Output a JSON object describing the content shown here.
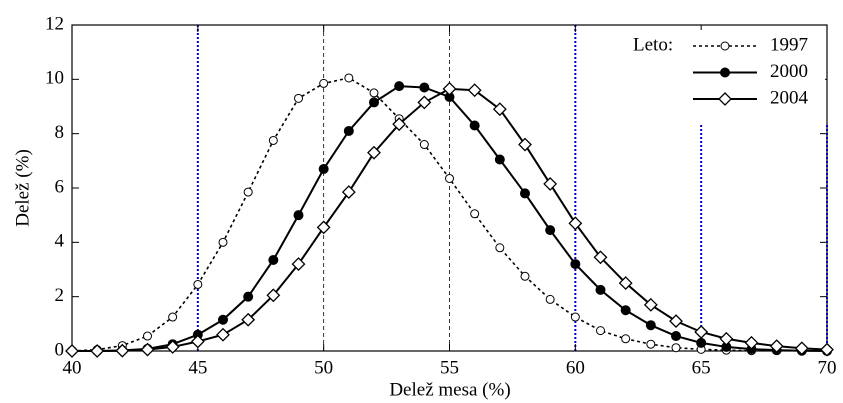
{
  "chart_data": {
    "type": "line",
    "xlabel": "Delež mesa (%)",
    "ylabel": "Delež (%)",
    "legend_title": "Leto:",
    "legend": "upper right",
    "x": [
      40,
      41,
      42,
      43,
      44,
      45,
      46,
      47,
      48,
      49,
      50,
      51,
      52,
      53,
      54,
      55,
      56,
      57,
      58,
      59,
      60,
      61,
      62,
      63,
      64,
      65,
      66,
      67,
      68,
      69,
      70
    ],
    "series": [
      {
        "name": "1997",
        "color": "#000000",
        "line": "dotted",
        "marker": "open-circle",
        "values": [
          0,
          0.05,
          0.2,
          0.55,
          1.25,
          2.45,
          4.0,
          5.85,
          7.75,
          9.3,
          9.85,
          10.05,
          9.5,
          8.55,
          7.6,
          6.35,
          5.05,
          3.8,
          2.75,
          1.9,
          1.25,
          0.75,
          0.45,
          0.25,
          0.12,
          0.06,
          0.03,
          0.01,
          null,
          null,
          null
        ]
      },
      {
        "name": "2000",
        "color": "#000000",
        "line": "solid",
        "marker": "filled-circle",
        "values": [
          0,
          0,
          0.02,
          0.08,
          0.25,
          0.6,
          1.15,
          2.0,
          3.35,
          5.0,
          6.7,
          8.1,
          9.15,
          9.75,
          9.7,
          9.35,
          8.3,
          7.05,
          5.8,
          4.45,
          3.2,
          2.25,
          1.5,
          0.95,
          0.55,
          0.3,
          0.15,
          0.07,
          0.03,
          0.01,
          0
        ]
      },
      {
        "name": "2004",
        "color": "#000000",
        "line": "solid",
        "marker": "open-diamond",
        "values": [
          0,
          0,
          0.01,
          0.05,
          0.15,
          0.35,
          0.6,
          1.15,
          2.05,
          3.2,
          4.55,
          5.85,
          7.3,
          8.35,
          9.15,
          9.65,
          9.6,
          8.9,
          7.6,
          6.15,
          4.7,
          3.45,
          2.5,
          1.7,
          1.1,
          0.7,
          0.45,
          0.3,
          0.18,
          0.1,
          0.05
        ]
      }
    ],
    "vlines": [
      {
        "x": 45,
        "color": "#0000cc"
      },
      {
        "x": 50,
        "color": "#000000"
      },
      {
        "x": 55,
        "color": "#000000"
      },
      {
        "x": 60,
        "color": "#0000cc"
      },
      {
        "x": 65,
        "color": "#0000cc"
      },
      {
        "x": 70,
        "color": "#0000cc"
      }
    ],
    "xlim": [
      40,
      70
    ],
    "xticks": [
      40,
      45,
      50,
      55,
      60,
      65,
      70
    ],
    "ylim": [
      0,
      12
    ],
    "yticks": [
      0,
      2,
      4,
      6,
      8,
      10,
      12
    ]
  }
}
